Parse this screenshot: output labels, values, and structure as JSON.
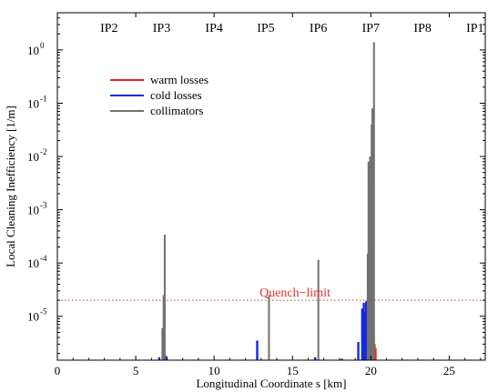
{
  "chart_data": {
    "type": "bar",
    "xlabel": "Longitudinal Coordinate s [km]",
    "ylabel": "Local Cleaning Inefficiency [1/m]",
    "xlim": [
      0,
      27.3
    ],
    "ylim": [
      1.5e-06,
      5.0
    ],
    "yscale": "log",
    "grid": false,
    "legend_position": "top-left",
    "x_ticks": [
      0,
      5,
      10,
      15,
      20,
      25
    ],
    "y_ticks": [
      {
        "value": 1e-05,
        "base": "10",
        "exp": "-5"
      },
      {
        "value": 0.0001,
        "base": "10",
        "exp": "-4"
      },
      {
        "value": 0.001,
        "base": "10",
        "exp": "-3"
      },
      {
        "value": 0.01,
        "base": "10",
        "exp": "-2"
      },
      {
        "value": 0.1,
        "base": "10",
        "exp": "-1"
      },
      {
        "value": 1,
        "base": "10",
        "exp": "0"
      }
    ],
    "ip_labels": [
      {
        "label": "IP2",
        "s": 3.3
      },
      {
        "label": "IP3",
        "s": 6.65
      },
      {
        "label": "IP4",
        "s": 10.0
      },
      {
        "label": "IP5",
        "s": 13.3
      },
      {
        "label": "IP6",
        "s": 16.65
      },
      {
        "label": "IP7",
        "s": 20.0
      },
      {
        "label": "IP8",
        "s": 23.3
      },
      {
        "label": "IP1",
        "s": 26.65
      }
    ],
    "quench_limit": {
      "label": "Quench−limit",
      "value": 2e-05,
      "color": "#e03030"
    },
    "series": [
      {
        "name": "warm losses",
        "color": "#ee2020",
        "points": [
          {
            "s": 20.05,
            "v": 3e-06
          },
          {
            "s": 20.12,
            "v": 3e-06
          },
          {
            "s": 20.18,
            "v": 5e-06
          },
          {
            "s": 20.24,
            "v": 3e-06
          },
          {
            "s": 20.3,
            "v": 2.5e-06
          }
        ]
      },
      {
        "name": "cold losses",
        "color": "#1428e6",
        "points": [
          {
            "s": 6.5,
            "v": 1.7e-06
          },
          {
            "s": 6.95,
            "v": 1.8e-06
          },
          {
            "s": 12.75,
            "v": 3.5e-06
          },
          {
            "s": 16.45,
            "v": 1.7e-06
          },
          {
            "s": 18.15,
            "v": 1.6e-06
          },
          {
            "s": 19.2,
            "v": 3.3e-06
          },
          {
            "s": 19.45,
            "v": 1.4e-05
          },
          {
            "s": 19.55,
            "v": 1.8e-05
          },
          {
            "s": 19.62,
            "v": 1.2e-05
          },
          {
            "s": 19.7,
            "v": 1.9e-05
          },
          {
            "s": 19.78,
            "v": 2e-05
          },
          {
            "s": 19.85,
            "v": 9e-06
          }
        ]
      },
      {
        "name": "collimators",
        "color": "#707070",
        "points": [
          {
            "s": 6.7,
            "v": 6e-06
          },
          {
            "s": 6.78,
            "v": 2.5e-05
          },
          {
            "s": 6.85,
            "v": 0.00034
          },
          {
            "s": 13.5,
            "v": 2.5e-05
          },
          {
            "s": 16.65,
            "v": 0.000115
          },
          {
            "s": 19.8,
            "v": 0.00015
          },
          {
            "s": 19.85,
            "v": 0.008
          },
          {
            "s": 19.9,
            "v": 0.006
          },
          {
            "s": 19.95,
            "v": 0.01
          },
          {
            "s": 20.0,
            "v": 0.003
          },
          {
            "s": 20.05,
            "v": 0.04
          },
          {
            "s": 20.1,
            "v": 0.08
          },
          {
            "s": 20.15,
            "v": 0.02
          },
          {
            "s": 20.2,
            "v": 1.4
          }
        ]
      }
    ]
  }
}
